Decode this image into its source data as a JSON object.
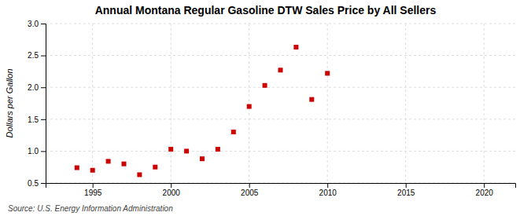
{
  "chart_data": {
    "type": "scatter",
    "title": "Annual Montana Regular Gasoline DTW Sales Price by All Sellers",
    "ylabel": "Dollars per Gallon",
    "annotation": "Source: U.S. Energy Information Administration",
    "x": [
      1994,
      1995,
      1996,
      1997,
      1998,
      1999,
      2000,
      2001,
      2002,
      2003,
      2004,
      2005,
      2006,
      2007,
      2008,
      2009,
      2010
    ],
    "values": [
      0.74,
      0.7,
      0.84,
      0.8,
      0.63,
      0.75,
      1.03,
      1.0,
      0.88,
      1.03,
      1.3,
      1.7,
      2.03,
      2.27,
      2.63,
      1.81,
      2.22
    ],
    "color": "#cc0000",
    "marker": "square",
    "xlim": [
      1992,
      2022
    ],
    "ylim": [
      0.5,
      3.0
    ],
    "xticks": [
      1995,
      2000,
      2005,
      2010,
      2015,
      2020
    ],
    "yticks": [
      0.5,
      {
        "value": 1.0,
        "label": "1.0"
      },
      1.5,
      {
        "value": 2.0,
        "label": "2.0"
      },
      2.5,
      {
        "value": 3.0,
        "label": "3.0"
      }
    ],
    "grid": true
  }
}
